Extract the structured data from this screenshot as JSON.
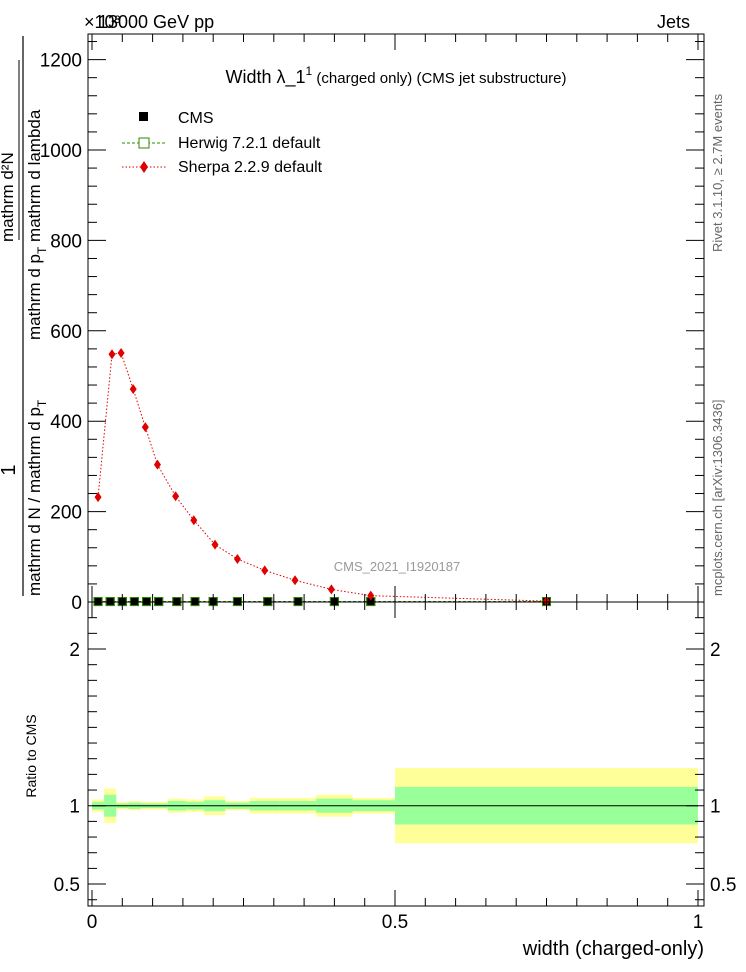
{
  "header": {
    "left": "13000 GeV pp",
    "right": "Jets",
    "exponent": "×10³"
  },
  "title": {
    "main": "Width λ_1",
    "sup": "1",
    "sub": " (charged only) (CMS jet substructure)"
  },
  "side_labels": {
    "rivet": "Rivet 3.1.10, ≥ 2.7M events",
    "mcplots": "mcplots.cern.ch [arXiv:1306.3436]"
  },
  "watermark": "CMS_2021_I1920187",
  "y_axis_label": {
    "one": "1",
    "denominator": "mathrm d N / mathrm d p",
    "denominator_sub": "T",
    "numerator": "mathrm d²N",
    "numerator_den": "mathrm d p",
    "numerator_den_sub": "T",
    "numerator_den2": " mathrm d lambda"
  },
  "ratio_ylabel": "Ratio to CMS",
  "xlabel": "width (charged-only)",
  "legend": [
    {
      "label": "CMS",
      "color": "#000000",
      "marker": "square-filled"
    },
    {
      "label": "Herwig 7.2.1 default",
      "color": "#2e8b00",
      "marker": "square-open"
    },
    {
      "label": "Sherpa 2.2.9 default",
      "color": "#e00000",
      "marker": "diamond"
    }
  ],
  "chart_data": {
    "type": "line",
    "main_panel": {
      "xlim": [
        0,
        1
      ],
      "ylim": [
        0,
        1250
      ],
      "y_multiplier": 1000,
      "yticks": [
        0,
        200,
        400,
        600,
        800,
        1000,
        1200
      ],
      "yticklabels": [
        "0",
        "200",
        "400",
        "600",
        "800",
        "1000",
        "1200"
      ],
      "series": [
        {
          "name": "CMS",
          "x": [
            0.01,
            0.03,
            0.05,
            0.07,
            0.09,
            0.11,
            0.14,
            0.17,
            0.2,
            0.24,
            0.29,
            0.34,
            0.4,
            0.46,
            0.75
          ],
          "y": [
            1,
            1,
            1,
            1,
            1,
            1,
            1,
            1,
            1,
            1,
            1,
            1,
            1,
            1,
            1
          ]
        },
        {
          "name": "Herwig 7.2.1 default",
          "x": [
            0.01,
            0.03,
            0.05,
            0.07,
            0.09,
            0.11,
            0.14,
            0.17,
            0.2,
            0.24,
            0.29,
            0.34,
            0.4,
            0.46,
            0.75
          ],
          "y": [
            1,
            1,
            1,
            1,
            1,
            1,
            1,
            1,
            1,
            1,
            1,
            1,
            1,
            1,
            1
          ]
        },
        {
          "name": "Sherpa 2.2.9 default",
          "x": [
            0.01,
            0.033,
            0.048,
            0.068,
            0.088,
            0.108,
            0.138,
            0.168,
            0.203,
            0.24,
            0.285,
            0.335,
            0.395,
            0.46,
            0.75
          ],
          "y": [
            232,
            548,
            551,
            471,
            387,
            304,
            234,
            181,
            127,
            95,
            70,
            48,
            28,
            14,
            2
          ]
        }
      ]
    },
    "ratio_panel": {
      "xlim": [
        0,
        1
      ],
      "ylim": [
        0.36,
        2.3
      ],
      "yticks": [
        0.5,
        1,
        2
      ],
      "yticklabels": [
        "0.5",
        "1",
        "2"
      ],
      "xticks": [
        0,
        0.5,
        1
      ],
      "xticklabels": [
        "0",
        "0.5",
        "1"
      ],
      "bands": [
        {
          "x0": 0.0,
          "x1": 0.02,
          "yellow": 0.04,
          "green": 0.025
        },
        {
          "x0": 0.02,
          "x1": 0.04,
          "yellow": 0.11,
          "green": 0.07
        },
        {
          "x0": 0.04,
          "x1": 0.06,
          "yellow": 0.025,
          "green": 0.015
        },
        {
          "x0": 0.06,
          "x1": 0.08,
          "yellow": 0.03,
          "green": 0.02
        },
        {
          "x0": 0.08,
          "x1": 0.1,
          "yellow": 0.025,
          "green": 0.015
        },
        {
          "x0": 0.1,
          "x1": 0.125,
          "yellow": 0.025,
          "green": 0.015
        },
        {
          "x0": 0.125,
          "x1": 0.155,
          "yellow": 0.045,
          "green": 0.03
        },
        {
          "x0": 0.155,
          "x1": 0.185,
          "yellow": 0.04,
          "green": 0.025
        },
        {
          "x0": 0.185,
          "x1": 0.22,
          "yellow": 0.06,
          "green": 0.035
        },
        {
          "x0": 0.22,
          "x1": 0.26,
          "yellow": 0.03,
          "green": 0.02
        },
        {
          "x0": 0.26,
          "x1": 0.31,
          "yellow": 0.05,
          "green": 0.03
        },
        {
          "x0": 0.31,
          "x1": 0.37,
          "yellow": 0.05,
          "green": 0.03
        },
        {
          "x0": 0.37,
          "x1": 0.43,
          "yellow": 0.07,
          "green": 0.045
        },
        {
          "x0": 0.43,
          "x1": 0.5,
          "yellow": 0.05,
          "green": 0.035
        },
        {
          "x0": 0.5,
          "x1": 1.0,
          "yellow": 0.24,
          "green": 0.12
        }
      ],
      "reference_line": 1.0
    },
    "colors": {
      "cms": "#000000",
      "herwig": "#2e8b00",
      "sherpa": "#e00000",
      "band_green": "#99ff99",
      "band_yellow": "#ffff99",
      "watermark": "#999999",
      "side_text": "#666666"
    }
  }
}
